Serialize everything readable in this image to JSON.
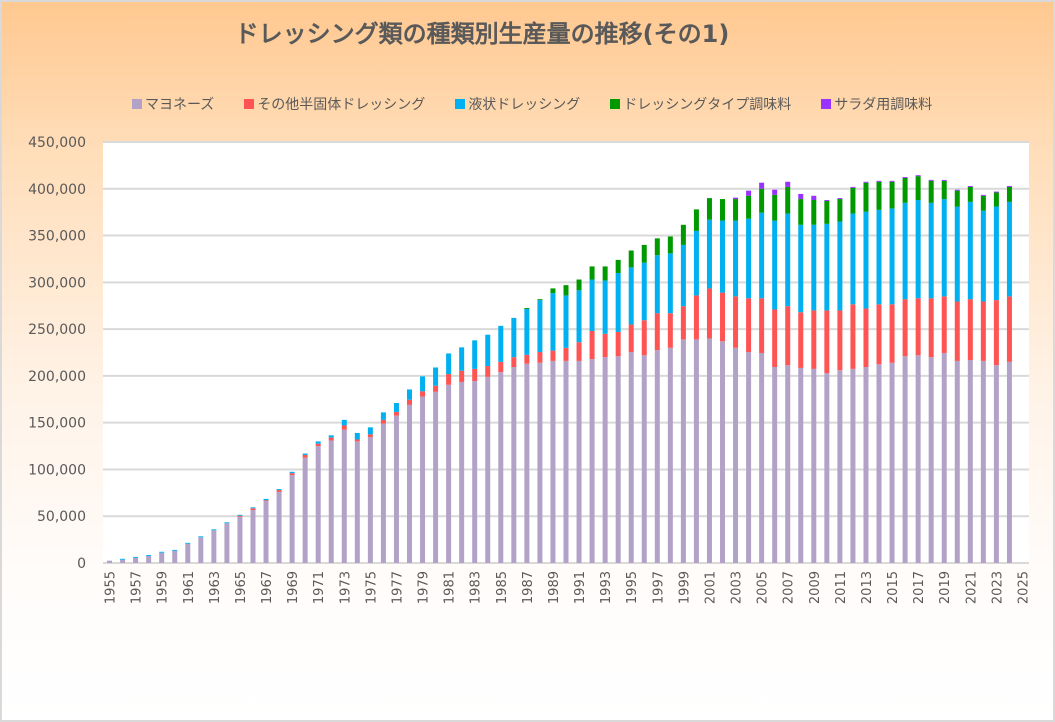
{
  "chart_data": {
    "type": "bar",
    "stacked": true,
    "title": "ドレッシング類の種類別生産量の推移(その1)",
    "xlabel": "",
    "ylabel": "",
    "ylim": [
      0,
      450000
    ],
    "yticks": [
      0,
      50000,
      100000,
      150000,
      200000,
      250000,
      300000,
      350000,
      400000,
      450000
    ],
    "ytick_labels": [
      "0",
      "50,000",
      "100,000",
      "150,000",
      "200,000",
      "250,000",
      "300,000",
      "350,000",
      "400,000",
      "450,000"
    ],
    "grid": true,
    "legend_position": "top",
    "categories": [
      1955,
      1956,
      1957,
      1958,
      1959,
      1960,
      1961,
      1962,
      1963,
      1964,
      1965,
      1966,
      1967,
      1968,
      1969,
      1970,
      1971,
      1972,
      1973,
      1974,
      1975,
      1976,
      1977,
      1978,
      1979,
      1980,
      1981,
      1982,
      1983,
      1984,
      1985,
      1986,
      1987,
      1988,
      1989,
      1990,
      1991,
      1992,
      1993,
      1994,
      1995,
      1996,
      1997,
      1998,
      1999,
      2000,
      2001,
      2002,
      2003,
      2004,
      2005,
      2006,
      2007,
      2008,
      2009,
      2010,
      2011,
      2012,
      2013,
      2014,
      2015,
      2016,
      2017,
      2018,
      2019,
      2020,
      2021,
      2022,
      2023,
      2024,
      2025
    ],
    "xtick_labels": [
      "1955",
      "1957",
      "1959",
      "1961",
      "1963",
      "1965",
      "1967",
      "1969",
      "1971",
      "1973",
      "1975",
      "1977",
      "1979",
      "1981",
      "1983",
      "1985",
      "1987",
      "1989",
      "1991",
      "1993",
      "1995",
      "1997",
      "1999",
      "2001",
      "2003",
      "2005",
      "2007",
      "2009",
      "2011",
      "2013",
      "2015",
      "2017",
      "2019",
      "2021",
      "2023",
      "2025"
    ],
    "series": [
      {
        "name": "マヨネーズ",
        "color": "#B3A2C7",
        "values": [
          2500,
          3500,
          5500,
          7500,
          11000,
          13000,
          20500,
          27500,
          35000,
          42500,
          49500,
          56500,
          66000,
          76000,
          94000,
          112500,
          125000,
          131000,
          142500,
          130000,
          134500,
          149000,
          157500,
          169000,
          178000,
          183000,
          190500,
          193500,
          194500,
          199000,
          204000,
          209500,
          213000,
          214000,
          216000,
          216000,
          216000,
          218000,
          220000,
          221000,
          225500,
          222000,
          227500,
          230000,
          239000,
          239000,
          240000,
          237000,
          230000,
          225500,
          224500,
          209500,
          211500,
          208500,
          207500,
          203000,
          206000,
          207500,
          209500,
          212500,
          214000,
          221000,
          222000,
          220000,
          224500,
          216000,
          217000,
          216000,
          211500,
          215000,
          null
        ]
      },
      {
        "name": "その他半固体ドレッシング",
        "color": "#FF5454",
        "values": [
          0,
          0,
          0,
          0,
          0,
          0,
          0,
          0,
          0,
          0,
          1000,
          2000,
          1000,
          2000,
          2000,
          3000,
          2500,
          3000,
          4500,
          2000,
          3000,
          4000,
          4000,
          5500,
          5500,
          6500,
          11500,
          12000,
          13000,
          11500,
          11000,
          10500,
          9500,
          11500,
          11000,
          14000,
          20000,
          30000,
          25000,
          26000,
          29500,
          37500,
          39500,
          37000,
          35500,
          47000,
          53500,
          52000,
          55000,
          57500,
          58500,
          61500,
          63000,
          59500,
          62500,
          67000,
          64000,
          69000,
          62500,
          64000,
          62500,
          61000,
          61000,
          63000,
          60500,
          63500,
          65000,
          63500,
          69500,
          70000,
          null
        ]
      },
      {
        "name": "液状ドレッシング",
        "color": "#00B0F0",
        "values": [
          0,
          1000,
          1000,
          1000,
          1000,
          1000,
          1000,
          1000,
          1000,
          1000,
          1000,
          1000,
          1500,
          1000,
          1500,
          1500,
          2500,
          2500,
          6000,
          7000,
          7500,
          8000,
          9500,
          11000,
          16000,
          19500,
          22000,
          25000,
          30500,
          33500,
          38500,
          42000,
          49000,
          55500,
          61500,
          56000,
          55500,
          55000,
          57000,
          63000,
          61000,
          61500,
          62000,
          64000,
          65500,
          69000,
          73500,
          77000,
          81000,
          85000,
          91500,
          95000,
          99000,
          93500,
          91500,
          92500,
          95000,
          97000,
          103500,
          101000,
          102500,
          103000,
          105000,
          102000,
          104000,
          101500,
          104000,
          97000,
          100000,
          101000,
          null
        ]
      },
      {
        "name": "ドレッシングタイプ調味料",
        "color": "#009900",
        "values": [
          0,
          0,
          0,
          0,
          0,
          0,
          0,
          0,
          0,
          0,
          0,
          0,
          0,
          0,
          0,
          0,
          0,
          0,
          0,
          0,
          0,
          0,
          0,
          0,
          0,
          0,
          0,
          0,
          0,
          0,
          0,
          0,
          1000,
          1000,
          5000,
          11000,
          11500,
          14000,
          15000,
          14000,
          18000,
          19000,
          18000,
          18000,
          21500,
          23000,
          23000,
          23000,
          23000,
          24500,
          25500,
          27500,
          28500,
          27500,
          26500,
          24500,
          24000,
          27500,
          31000,
          30000,
          28500,
          26500,
          25500,
          23500,
          19500,
          17000,
          16000,
          16000,
          15000,
          16000,
          null
        ]
      },
      {
        "name": "サラダ用調味料",
        "color": "#9933FF",
        "values": [
          0,
          0,
          0,
          0,
          0,
          0,
          0,
          0,
          0,
          0,
          0,
          0,
          0,
          0,
          0,
          0,
          0,
          0,
          0,
          0,
          0,
          0,
          0,
          0,
          0,
          0,
          0,
          0,
          0,
          0,
          0,
          0,
          0,
          0,
          0,
          0,
          0,
          0,
          0,
          0,
          0,
          0,
          0,
          0,
          0,
          0,
          0,
          0,
          1500,
          5500,
          6500,
          5500,
          5500,
          5500,
          4500,
          1000,
          1000,
          1000,
          1000,
          1000,
          1000,
          1000,
          1000,
          1000,
          1000,
          1000,
          1000,
          1000,
          1000,
          1000,
          null
        ]
      }
    ]
  }
}
